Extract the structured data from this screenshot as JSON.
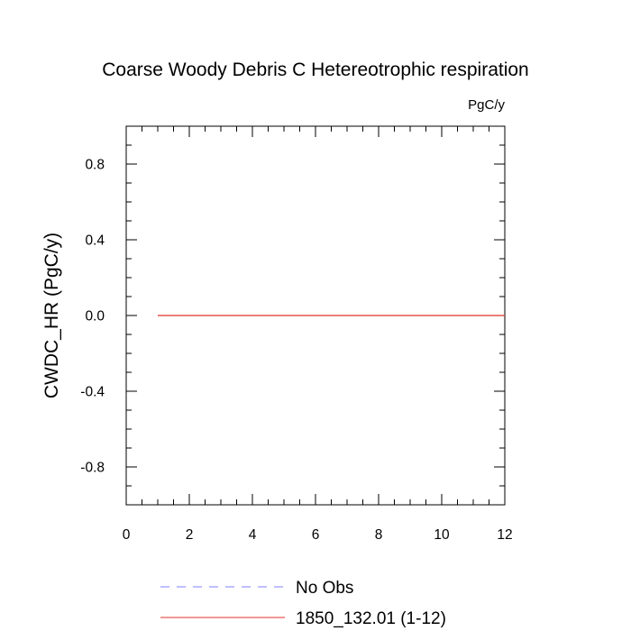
{
  "chart_data": {
    "type": "line",
    "title": "Coarse Woody Debris C Hetereotrophic respiration",
    "units_label": "PgC/y",
    "ylabel": "CWDC_HR  (PgC/y)",
    "xlabel": "",
    "xlim": [
      0,
      12
    ],
    "ylim": [
      -1,
      1
    ],
    "x_ticks": [
      0,
      2,
      4,
      6,
      8,
      10,
      12
    ],
    "y_ticks": [
      -0.8,
      -0.4,
      0.0,
      0.4,
      0.8
    ],
    "x_tick_labels": [
      "0",
      "2",
      "4",
      "6",
      "8",
      "10",
      "12"
    ],
    "y_tick_labels": [
      "-0.8",
      "-0.4",
      "0.0",
      "0.4",
      "0.8"
    ],
    "grid": false,
    "legend_position": "bottom",
    "series": [
      {
        "name": "No Obs",
        "color": "#7f7fff",
        "dash": "dashed",
        "x": [],
        "values": []
      },
      {
        "name": "1850_132.01 (1-12)",
        "color": "#e0302c",
        "dash": "solid",
        "x": [
          1,
          2,
          3,
          4,
          5,
          6,
          7,
          8,
          9,
          10,
          11,
          12
        ],
        "values": [
          0,
          0,
          0,
          0,
          0,
          0,
          0,
          0,
          0,
          0,
          0,
          0
        ]
      }
    ]
  }
}
